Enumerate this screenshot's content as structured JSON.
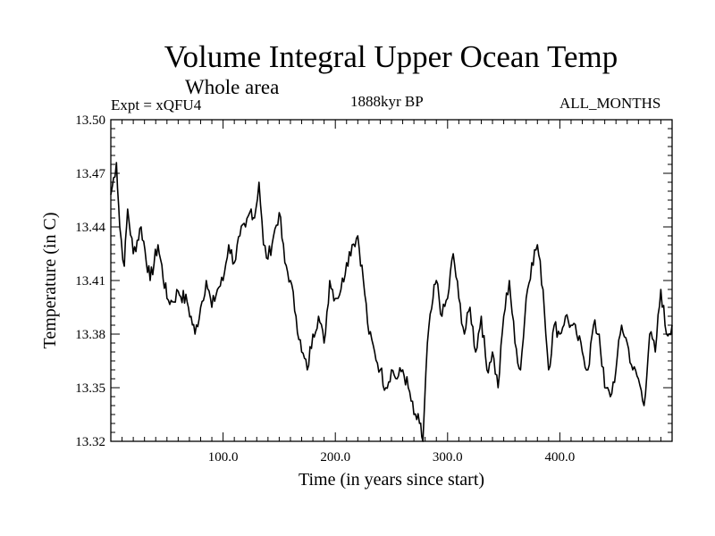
{
  "header": {
    "title": "Volume Integral Upper Ocean Temp",
    "subtitle": "Whole area",
    "experiment": "Expt = xQFU4",
    "period": "1888kyr BP",
    "months": "ALL_MONTHS"
  },
  "chart_data": {
    "type": "line",
    "title": "Volume Integral Upper Ocean Temp",
    "subtitle": "Whole area",
    "xlabel": "Time (in years since start)",
    "ylabel": "Temperature (in C)",
    "xlim": [
      0,
      500
    ],
    "ylim": [
      13.32,
      13.5
    ],
    "xticks": [
      100,
      200,
      300,
      400
    ],
    "xtick_labels": [
      "100.0",
      "200.0",
      "300.0",
      "400.0"
    ],
    "yticks": [
      13.32,
      13.35,
      13.38,
      13.41,
      13.44,
      13.47,
      13.5
    ],
    "ytick_labels": [
      "13.32",
      "13.35",
      "13.38",
      "13.41",
      "13.44",
      "13.47",
      "13.50"
    ],
    "grid": false,
    "series": [
      {
        "name": "Temperature",
        "x": [
          0,
          5,
          8,
          12,
          15,
          20,
          27,
          35,
          42,
          50,
          55,
          60,
          68,
          75,
          80,
          85,
          90,
          95,
          100,
          105,
          110,
          115,
          120,
          125,
          128,
          132,
          136,
          140,
          145,
          150,
          155,
          160,
          165,
          170,
          175,
          180,
          185,
          190,
          195,
          200,
          205,
          210,
          215,
          220,
          225,
          230,
          235,
          240,
          245,
          250,
          255,
          260,
          265,
          270,
          275,
          278,
          282,
          287,
          290,
          295,
          300,
          305,
          310,
          315,
          320,
          325,
          330,
          335,
          340,
          345,
          350,
          355,
          360,
          365,
          370,
          375,
          380,
          385,
          390,
          395,
          400,
          405,
          410,
          415,
          420,
          425,
          430,
          435,
          440,
          445,
          450,
          455,
          460,
          465,
          470,
          475,
          480,
          485,
          490,
          495,
          500
        ],
        "values": [
          13.458,
          13.476,
          13.44,
          13.418,
          13.45,
          13.425,
          13.44,
          13.41,
          13.43,
          13.4,
          13.398,
          13.404,
          13.398,
          13.38,
          13.395,
          13.41,
          13.395,
          13.405,
          13.41,
          13.43,
          13.42,
          13.435,
          13.44,
          13.45,
          13.445,
          13.465,
          13.43,
          13.422,
          13.435,
          13.448,
          13.42,
          13.41,
          13.39,
          13.37,
          13.36,
          13.38,
          13.39,
          13.375,
          13.41,
          13.4,
          13.405,
          13.42,
          13.43,
          13.435,
          13.41,
          13.38,
          13.37,
          13.36,
          13.35,
          13.36,
          13.355,
          13.36,
          13.35,
          13.335,
          13.33,
          13.32,
          13.375,
          13.4,
          13.41,
          13.39,
          13.4,
          13.425,
          13.4,
          13.38,
          13.395,
          13.37,
          13.39,
          13.36,
          13.37,
          13.35,
          13.39,
          13.41,
          13.375,
          13.36,
          13.4,
          13.42,
          13.43,
          13.405,
          13.36,
          13.385,
          13.38,
          13.39,
          13.385,
          13.38,
          13.37,
          13.36,
          13.385,
          13.38,
          13.35,
          13.345,
          13.36,
          13.385,
          13.375,
          13.36,
          13.355,
          13.34,
          13.38,
          13.37,
          13.405,
          13.38,
          13.385
        ]
      }
    ]
  }
}
